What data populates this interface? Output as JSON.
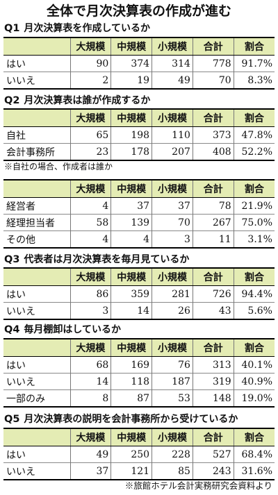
{
  "title": "全体で月次決算表の作成が進む",
  "columns": [
    "大規模",
    "中規模",
    "小規模",
    "合計",
    "割合"
  ],
  "q1": {
    "num": "Q1",
    "text": "月次決算表を作成しているか",
    "rows": [
      {
        "label": "はい",
        "values": [
          "90",
          "374",
          "314",
          "778",
          "91.7%"
        ]
      },
      {
        "label": "いいえ",
        "values": [
          "2",
          "19",
          "49",
          "70",
          "8.3%"
        ]
      }
    ]
  },
  "q2": {
    "num": "Q2",
    "text": "月次決算表は誰が作成するか",
    "rows": [
      {
        "label": "自社",
        "values": [
          "65",
          "198",
          "110",
          "373",
          "47.8%"
        ]
      },
      {
        "label": "会計事務所",
        "values": [
          "23",
          "178",
          "207",
          "408",
          "52.2%"
        ]
      }
    ],
    "note": "※自社の場合、作成者は誰か",
    "sub_rows": [
      {
        "label": "経営者",
        "values": [
          "4",
          "37",
          "37",
          "78",
          "21.9%"
        ]
      },
      {
        "label": "経理担当者",
        "values": [
          "58",
          "139",
          "70",
          "267",
          "75.0%"
        ]
      },
      {
        "label": "その他",
        "values": [
          "4",
          "4",
          "3",
          "11",
          "3.1%"
        ]
      }
    ]
  },
  "q3": {
    "num": "Q3",
    "text": "代表者は月次決算表を毎月見ているか",
    "rows": [
      {
        "label": "はい",
        "values": [
          "86",
          "359",
          "281",
          "726",
          "94.4%"
        ]
      },
      {
        "label": "いいえ",
        "values": [
          "3",
          "14",
          "26",
          "43",
          "5.6%"
        ]
      }
    ]
  },
  "q4": {
    "num": "Q4",
    "text": "毎月棚卸はしているか",
    "rows": [
      {
        "label": "はい",
        "values": [
          "68",
          "169",
          "76",
          "313",
          "40.1%"
        ]
      },
      {
        "label": "いいえ",
        "values": [
          "14",
          "118",
          "187",
          "319",
          "40.9%"
        ]
      },
      {
        "label": "一部のみ",
        "values": [
          "8",
          "87",
          "53",
          "148",
          "19.0%"
        ]
      }
    ]
  },
  "q5": {
    "num": "Q5",
    "text": "月次決算表の説明を会計事務所から受けているか",
    "rows": [
      {
        "label": "はい",
        "values": [
          "49",
          "250",
          "228",
          "527",
          "68.4%"
        ]
      },
      {
        "label": "いいえ",
        "values": [
          "37",
          "121",
          "85",
          "243",
          "31.6%"
        ]
      }
    ]
  },
  "source": "※旅館ホテル会計実務研究会資料より"
}
